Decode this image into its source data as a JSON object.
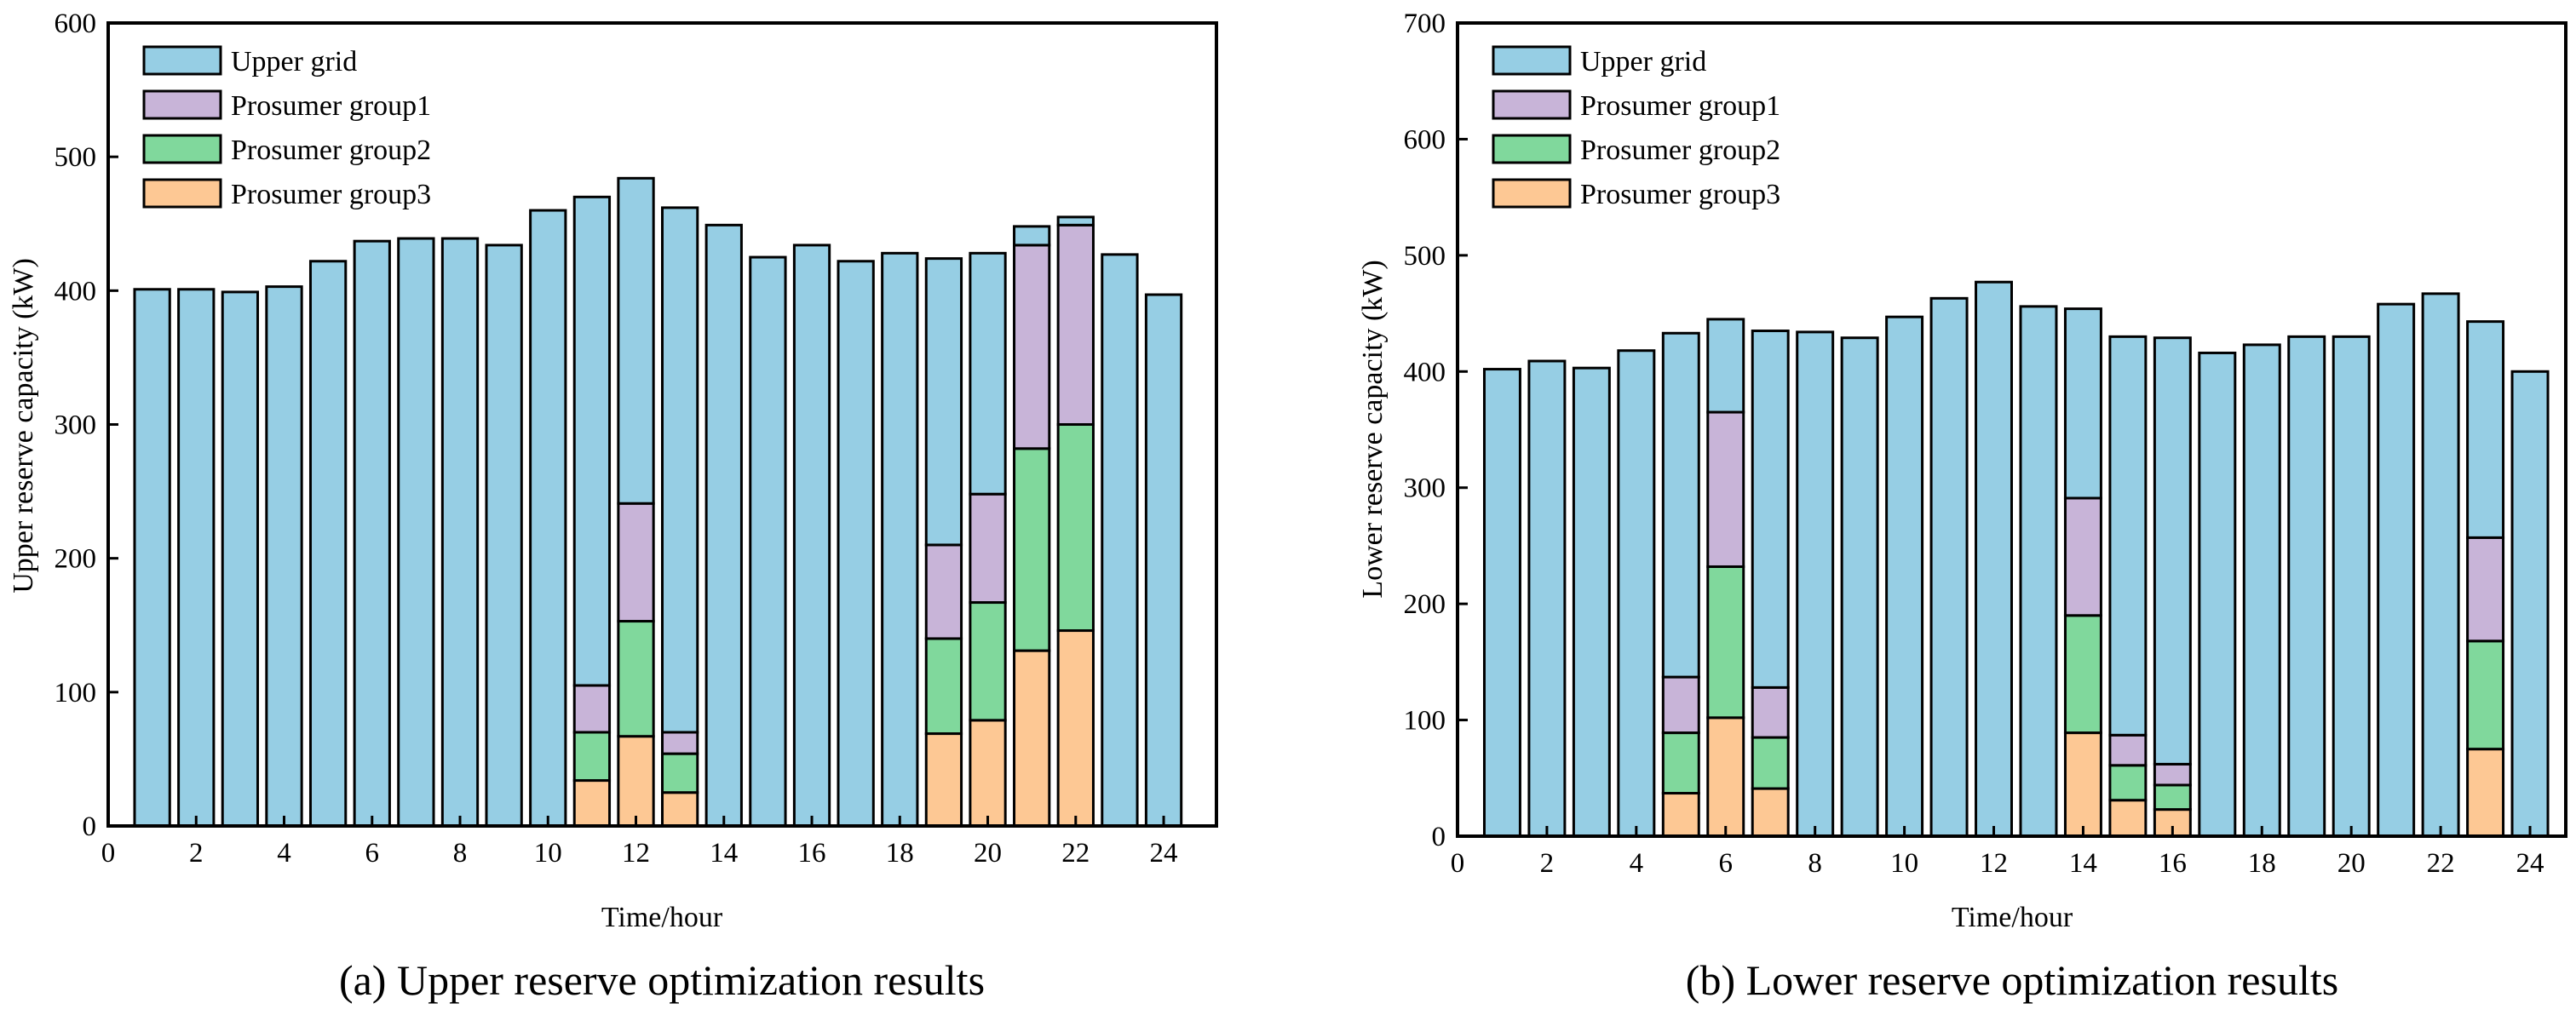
{
  "colors": {
    "Upper grid": "#96cee4",
    "Prosumer group1": "#c8b4d8",
    "Prosumer group2": "#80d89c",
    "Prosumer group3": "#fdc894"
  },
  "chart_data": [
    {
      "type": "bar",
      "stacked": true,
      "caption": "(a) Upper reserve optimization results",
      "xlabel": "Time/hour",
      "ylabel": "Upper reserve capacity (kW)",
      "xlim": [
        0,
        25.2
      ],
      "ylim": [
        0,
        600
      ],
      "xticks": [
        0,
        2,
        4,
        6,
        8,
        10,
        12,
        14,
        16,
        18,
        20,
        22,
        24
      ],
      "yticks": [
        0,
        100,
        200,
        300,
        400,
        500,
        600
      ],
      "legend_position": "top-left",
      "x": [
        1,
        2,
        3,
        4,
        5,
        6,
        7,
        8,
        9,
        10,
        11,
        12,
        13,
        14,
        15,
        16,
        17,
        18,
        19,
        20,
        21,
        22,
        23,
        24
      ],
      "series": [
        {
          "name": "Prosumer group3",
          "values": [
            0,
            0,
            0,
            0,
            0,
            0,
            0,
            0,
            0,
            0,
            34,
            67,
            25,
            0,
            0,
            0,
            0,
            0,
            69,
            79,
            131,
            146,
            0,
            0
          ]
        },
        {
          "name": "Prosumer group2",
          "values": [
            0,
            0,
            0,
            0,
            0,
            0,
            0,
            0,
            0,
            0,
            36,
            86,
            29,
            0,
            0,
            0,
            0,
            0,
            71,
            88,
            151,
            154,
            0,
            0
          ]
        },
        {
          "name": "Prosumer group1",
          "values": [
            0,
            0,
            0,
            0,
            0,
            0,
            0,
            0,
            0,
            0,
            35,
            88,
            16,
            0,
            0,
            0,
            0,
            0,
            70,
            81,
            152,
            149,
            0,
            0
          ]
        },
        {
          "name": "Upper grid",
          "values": [
            401,
            401,
            399,
            403,
            422,
            437,
            439,
            439,
            434,
            460,
            365,
            243,
            392,
            449,
            425,
            434,
            422,
            428,
            214,
            180,
            14,
            6,
            427,
            397
          ]
        }
      ]
    },
    {
      "type": "bar",
      "stacked": true,
      "caption": "(b) Lower reserve optimization results",
      "xlabel": "Time/hour",
      "ylabel": "Lower reserve capacity (kW)",
      "xlim": [
        0,
        24.8
      ],
      "ylim": [
        0,
        700
      ],
      "xticks": [
        0,
        2,
        4,
        6,
        8,
        10,
        12,
        14,
        16,
        18,
        20,
        22,
        24
      ],
      "yticks": [
        0,
        100,
        200,
        300,
        400,
        500,
        600,
        700
      ],
      "legend_position": "top-left",
      "x": [
        1,
        2,
        3,
        4,
        5,
        6,
        7,
        8,
        9,
        10,
        11,
        12,
        13,
        14,
        15,
        16,
        17,
        18,
        19,
        20,
        21,
        22,
        23,
        24
      ],
      "series": [
        {
          "name": "Prosumer group3",
          "values": [
            0,
            0,
            0,
            0,
            37,
            102,
            41,
            0,
            0,
            0,
            0,
            0,
            0,
            89,
            31,
            23,
            0,
            0,
            0,
            0,
            0,
            0,
            75,
            0
          ]
        },
        {
          "name": "Prosumer group2",
          "values": [
            0,
            0,
            0,
            0,
            52,
            130,
            44,
            0,
            0,
            0,
            0,
            0,
            0,
            101,
            30,
            21,
            0,
            0,
            0,
            0,
            0,
            0,
            93,
            0
          ]
        },
        {
          "name": "Prosumer group1",
          "values": [
            0,
            0,
            0,
            0,
            48,
            133,
            43,
            0,
            0,
            0,
            0,
            0,
            0,
            101,
            26,
            18,
            0,
            0,
            0,
            0,
            0,
            0,
            89,
            0
          ]
        },
        {
          "name": "Upper grid",
          "values": [
            402,
            409,
            403,
            418,
            296,
            80,
            307,
            434,
            429,
            447,
            463,
            477,
            456,
            163,
            343,
            367,
            416,
            423,
            430,
            430,
            458,
            467,
            186,
            400
          ]
        }
      ]
    }
  ],
  "legend": [
    "Upper grid",
    "Prosumer group1",
    "Prosumer group2",
    "Prosumer group3"
  ]
}
